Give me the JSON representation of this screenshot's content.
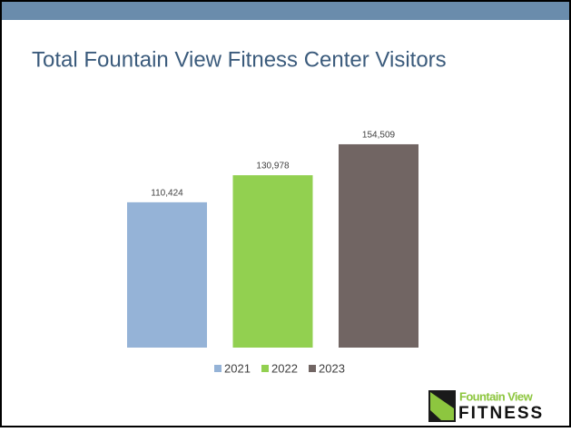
{
  "chart_data": {
    "type": "bar",
    "title": "Total Fountain View Fitness Center Visitors",
    "series": [
      {
        "name": "2021",
        "color": "#95b3d7",
        "values": [
          110424
        ],
        "value_labels": [
          "110,424"
        ]
      },
      {
        "name": "2022",
        "color": "#92d050",
        "values": [
          130978
        ],
        "value_labels": [
          "130,978"
        ]
      },
      {
        "name": "2023",
        "color": "#716563",
        "values": [
          154509
        ],
        "value_labels": [
          "154,509"
        ]
      }
    ],
    "ylim": [
      0,
      180000
    ],
    "legend": "bottom"
  },
  "logo": {
    "line1": "Fountain View",
    "line2": "FITNESS"
  }
}
